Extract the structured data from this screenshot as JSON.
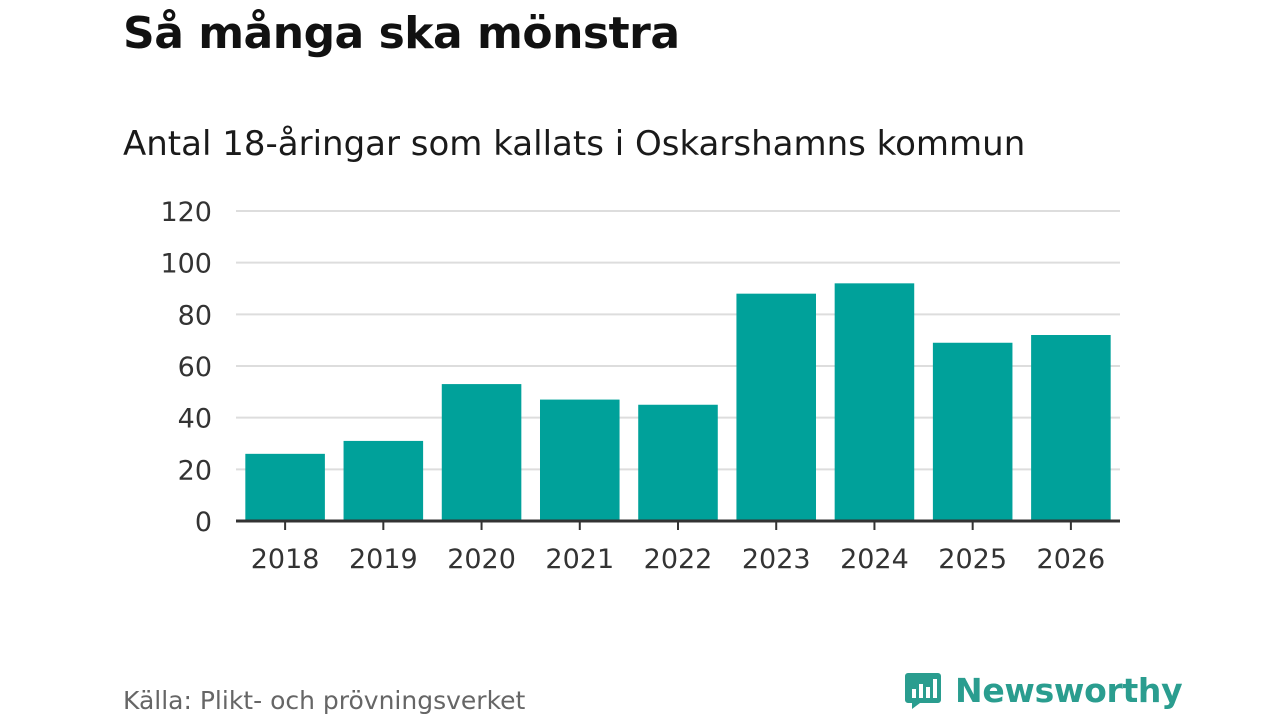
{
  "chart_data": {
    "type": "bar",
    "title": "Så många ska mönstra",
    "subtitle": "Antal 18-åringar som kallats i Oskarshamns kommun",
    "categories": [
      "2018",
      "2019",
      "2020",
      "2021",
      "2022",
      "2023",
      "2024",
      "2025",
      "2026"
    ],
    "values": [
      26,
      31,
      53,
      47,
      45,
      88,
      92,
      69,
      72
    ],
    "ylim": [
      0,
      120
    ],
    "yticks": [
      0,
      20,
      40,
      60,
      80,
      100,
      120
    ],
    "grid": true,
    "bar_color": "#00a19a",
    "grid_color": "#dddddd",
    "axis_color": "#333333"
  },
  "source": "Källa: Plikt- och prövningsverket",
  "brand": {
    "name": "Newsworthy",
    "icon": "newsworthy-logo-icon",
    "color": "#2a9d8f"
  }
}
